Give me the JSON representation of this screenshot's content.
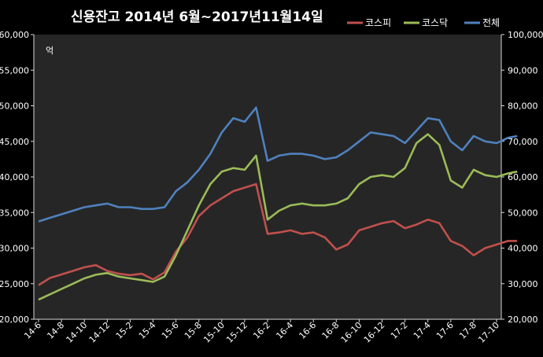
{
  "chart_data": {
    "type": "line",
    "title": "신용잔고  2014년 6월~2017년11월14일",
    "ylabel_left": "억",
    "ylim_left": [
      20000,
      60000
    ],
    "ylim_right": [
      20000,
      100000
    ],
    "y_ticks_left": [
      "20,000",
      "25,000",
      "30,000",
      "35,000",
      "40,000",
      "45,000",
      "50,000",
      "55,000",
      "60,000"
    ],
    "y_ticks_right": [
      "20,000",
      "30,000",
      "40,000",
      "50,000",
      "60,000",
      "70,000",
      "80,000",
      "90,000",
      "100,000"
    ],
    "x_ticks": [
      "14-6",
      "14-8",
      "14-10",
      "14-12",
      "15-2",
      "15-4",
      "15-6",
      "15-8",
      "15-10",
      "15-12",
      "16-2",
      "16-4",
      "16-6",
      "16-8",
      "16-10",
      "16-12",
      "17-2",
      "17-4",
      "17-6",
      "17-8",
      "17-10"
    ],
    "legend_position": "top-right",
    "grid": false,
    "series": [
      {
        "name": "코스피",
        "color": "#c0504d",
        "axis": "left",
        "x": [
          0,
          0.5,
          1,
          1.5,
          2,
          2.5,
          3,
          3.5,
          4,
          4.5,
          5,
          5.5,
          6,
          6.5,
          7,
          7.5,
          8,
          8.5,
          9,
          9.5,
          10,
          10.5,
          11,
          11.5,
          12,
          12.5,
          13,
          13.5,
          14,
          14.5,
          15,
          15.5,
          16,
          16.5,
          17,
          17.5,
          18,
          18.5,
          19,
          19.5,
          20,
          20.5,
          20.9
        ],
        "values": [
          24800,
          25800,
          26300,
          26800,
          27300,
          27600,
          26800,
          26400,
          26200,
          26400,
          25600,
          26600,
          29500,
          31500,
          34500,
          36000,
          37000,
          38000,
          38500,
          39000,
          32000,
          32200,
          32500,
          32000,
          32200,
          31500,
          29800,
          30500,
          32500,
          33000,
          33500,
          33800,
          32800,
          33300,
          34000,
          33500,
          31000,
          30300,
          29000,
          30000,
          30500,
          31000,
          31000
        ]
      },
      {
        "name": "코스닥",
        "color": "#9bbb59",
        "axis": "right",
        "x": [
          0,
          0.5,
          1,
          1.5,
          2,
          2.5,
          3,
          3.5,
          4,
          4.5,
          5,
          5.5,
          6,
          6.5,
          7,
          7.5,
          8,
          8.5,
          9,
          9.5,
          10,
          10.5,
          11,
          11.5,
          12,
          12.5,
          13,
          13.5,
          14,
          14.5,
          15,
          15.5,
          16,
          16.5,
          17,
          17.5,
          18,
          18.5,
          19,
          19.5,
          20,
          20.5,
          20.9
        ],
        "values": [
          25500,
          27000,
          28500,
          30000,
          31500,
          32500,
          33000,
          32000,
          31500,
          31000,
          30500,
          32000,
          38000,
          45000,
          52000,
          58000,
          61500,
          62500,
          62000,
          66000,
          48000,
          50500,
          52000,
          52500,
          52000,
          52000,
          52500,
          54000,
          58000,
          60000,
          60500,
          60000,
          62500,
          69500,
          72000,
          69000,
          59000,
          57000,
          62000,
          60500,
          60000,
          61000,
          61500
        ]
      },
      {
        "name": "전체",
        "color": "#4f81bd",
        "axis": "right",
        "x": [
          0,
          0.5,
          1,
          1.5,
          2,
          2.5,
          3,
          3.5,
          4,
          4.5,
          5,
          5.5,
          6,
          6.5,
          7,
          7.5,
          8,
          8.5,
          9,
          9.5,
          10,
          10.5,
          11,
          11.5,
          12,
          12.5,
          13,
          13.5,
          14,
          14.5,
          15,
          15.5,
          16,
          16.5,
          17,
          17.5,
          18,
          18.5,
          19,
          19.5,
          20,
          20.5,
          20.9
        ],
        "values": [
          47500,
          48500,
          49500,
          50500,
          51500,
          52000,
          52500,
          51500,
          51500,
          51000,
          51000,
          51500,
          56000,
          58500,
          62000,
          66500,
          72500,
          76500,
          75500,
          79500,
          64500,
          66000,
          66500,
          66500,
          66000,
          65000,
          65500,
          67500,
          70000,
          72500,
          72000,
          71500,
          69500,
          73000,
          76500,
          76000,
          70000,
          67500,
          71500,
          70000,
          69500,
          71000,
          71500
        ]
      }
    ]
  }
}
